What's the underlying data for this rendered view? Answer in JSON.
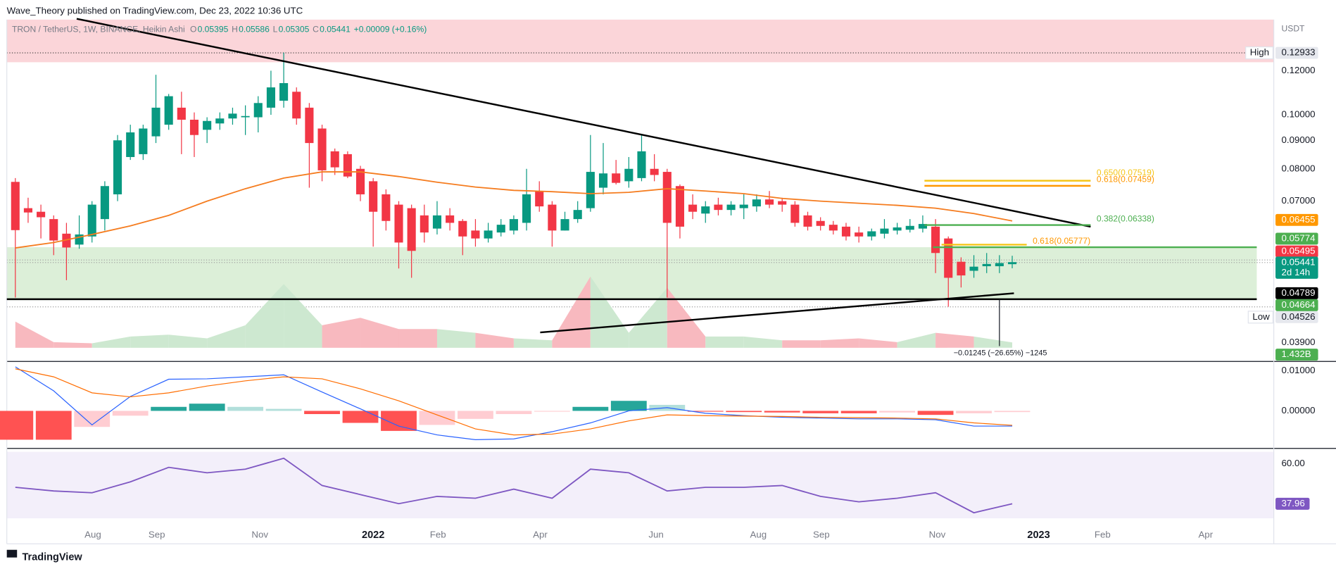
{
  "header": {
    "publisher": "Wave_Theory published on TradingView.com, Dec 23, 2022 10:36 UTC"
  },
  "legend": {
    "symbol": "TRON / TetherUS, 1W, BINANCE, Heikin Ashi",
    "fields": [
      {
        "key": "O",
        "value": "0.05395"
      },
      {
        "key": "H",
        "value": "0.05586"
      },
      {
        "key": "L",
        "value": "0.05305"
      },
      {
        "key": "C",
        "value": "0.05441"
      }
    ],
    "change": "+0.00009 (+0.16%)"
  },
  "price_axis": {
    "unit": "USDT",
    "log": true,
    "ylim": [
      0.0361,
      0.1482
    ],
    "ticks": [
      {
        "value": 0.12,
        "label": "0.12000"
      },
      {
        "value": 0.1,
        "label": "0.10000"
      },
      {
        "value": 0.09,
        "label": "0.09000"
      },
      {
        "value": 0.08,
        "label": "0.08000"
      },
      {
        "value": 0.07,
        "label": "0.07000"
      },
      {
        "value": 0.039,
        "label": "0.03900"
      }
    ],
    "high_label": "High",
    "low_label": "Low",
    "badges": [
      "0.12933",
      "0.06455",
      "0.05774",
      "0.05495",
      "0.05441",
      "2d 14h",
      "0.04789",
      "0.04664",
      "0.04526",
      "1.432B"
    ]
  },
  "candles": [
    [
      0.0758,
      0.077,
      0.047,
      0.0621
    ],
    [
      0.068,
      0.071,
      0.064,
      0.0668
    ],
    [
      0.067,
      0.069,
      0.06,
      0.0655
    ],
    [
      0.065,
      0.066,
      0.056,
      0.0595
    ],
    [
      0.0612,
      0.064,
      0.0505,
      0.0578
    ],
    [
      0.0585,
      0.066,
      0.0575,
      0.061
    ],
    [
      0.0605,
      0.07,
      0.059,
      0.069
    ],
    [
      0.065,
      0.076,
      0.062,
      0.0745
    ],
    [
      0.072,
      0.092,
      0.07,
      0.09
    ],
    [
      0.084,
      0.096,
      0.083,
      0.093
    ],
    [
      0.085,
      0.096,
      0.083,
      0.0945
    ],
    [
      0.0915,
      0.118,
      0.089,
      0.103
    ],
    [
      0.096,
      0.109,
      0.094,
      0.108
    ],
    [
      0.103,
      0.11,
      0.085,
      0.098
    ],
    [
      0.098,
      0.101,
      0.084,
      0.092
    ],
    [
      0.094,
      0.099,
      0.089,
      0.0975
    ],
    [
      0.0965,
      0.101,
      0.094,
      0.0985
    ],
    [
      0.0985,
      0.103,
      0.096,
      0.1005
    ],
    [
      0.099,
      0.104,
      0.092,
      0.0995
    ],
    [
      0.099,
      0.108,
      0.093,
      0.105
    ],
    [
      0.103,
      0.12,
      0.1,
      0.112
    ],
    [
      0.106,
      0.12933,
      0.103,
      0.114
    ],
    [
      0.11,
      0.112,
      0.096,
      0.0985
    ],
    [
      0.103,
      0.105,
      0.074,
      0.089
    ],
    [
      0.0945,
      0.096,
      0.076,
      0.0795
    ],
    [
      0.086,
      0.087,
      0.078,
      0.0805
    ],
    [
      0.085,
      0.086,
      0.077,
      0.0775
    ],
    [
      0.08,
      0.081,
      0.07,
      0.072
    ],
    [
      0.076,
      0.077,
      0.058,
      0.067
    ],
    [
      0.072,
      0.0735,
      0.062,
      0.0645
    ],
    [
      0.069,
      0.07,
      0.053,
      0.059
    ],
    [
      0.068,
      0.069,
      0.051,
      0.057
    ],
    [
      0.066,
      0.069,
      0.059,
      0.0615
    ],
    [
      0.0625,
      0.07,
      0.061,
      0.066
    ],
    [
      0.066,
      0.068,
      0.062,
      0.064
    ],
    [
      0.0645,
      0.065,
      0.056,
      0.0605
    ],
    [
      0.062,
      0.065,
      0.058,
      0.06
    ],
    [
      0.06,
      0.064,
      0.059,
      0.062
    ],
    [
      0.0615,
      0.065,
      0.0605,
      0.0635
    ],
    [
      0.062,
      0.066,
      0.061,
      0.065
    ],
    [
      0.064,
      0.08,
      0.062,
      0.072
    ],
    [
      0.073,
      0.076,
      0.067,
      0.0685
    ],
    [
      0.069,
      0.07,
      0.058,
      0.062
    ],
    [
      0.062,
      0.067,
      0.062,
      0.065
    ],
    [
      0.065,
      0.07,
      0.064,
      0.0675
    ],
    [
      0.068,
      0.092,
      0.067,
      0.079
    ],
    [
      0.074,
      0.089,
      0.072,
      0.0785
    ],
    [
      0.0785,
      0.083,
      0.075,
      0.0755
    ],
    [
      0.076,
      0.084,
      0.074,
      0.08
    ],
    [
      0.077,
      0.092,
      0.076,
      0.086
    ],
    [
      0.08,
      0.085,
      0.076,
      0.078
    ],
    [
      0.079,
      0.08,
      0.047,
      0.064
    ],
    [
      0.0745,
      0.075,
      0.06,
      0.063
    ],
    [
      0.069,
      0.072,
      0.065,
      0.067
    ],
    [
      0.0665,
      0.07,
      0.064,
      0.0685
    ],
    [
      0.069,
      0.071,
      0.066,
      0.0675
    ],
    [
      0.0675,
      0.07,
      0.066,
      0.069
    ],
    [
      0.068,
      0.072,
      0.065,
      0.069
    ],
    [
      0.0685,
      0.072,
      0.067,
      0.0705
    ],
    [
      0.0705,
      0.073,
      0.068,
      0.069
    ],
    [
      0.07,
      0.071,
      0.067,
      0.069
    ],
    [
      0.069,
      0.07,
      0.063,
      0.064
    ],
    [
      0.066,
      0.067,
      0.062,
      0.063
    ],
    [
      0.0645,
      0.0655,
      0.062,
      0.0632
    ],
    [
      0.0635,
      0.0645,
      0.061,
      0.062
    ],
    [
      0.063,
      0.064,
      0.0595,
      0.0605
    ],
    [
      0.0615,
      0.063,
      0.059,
      0.0605
    ],
    [
      0.0605,
      0.0625,
      0.0595,
      0.0618
    ],
    [
      0.0612,
      0.065,
      0.06,
      0.0625
    ],
    [
      0.062,
      0.064,
      0.061,
      0.0628
    ],
    [
      0.0622,
      0.065,
      0.0615,
      0.0632
    ],
    [
      0.0625,
      0.066,
      0.0615,
      0.0637
    ],
    [
      0.063,
      0.065,
      0.052,
      0.0565
    ],
    [
      0.06,
      0.0605,
      0.04526,
      0.051
    ],
    [
      0.0545,
      0.0555,
      0.049,
      0.0515
    ],
    [
      0.0525,
      0.056,
      0.051,
      0.0534
    ],
    [
      0.0535,
      0.0565,
      0.052,
      0.054
    ],
    [
      0.0535,
      0.056,
      0.052,
      0.0542
    ],
    [
      0.05395,
      0.05586,
      0.05305,
      0.05441
    ]
  ],
  "ema": [
    0.0577,
    0.059,
    0.061,
    0.0632,
    0.066,
    0.07,
    0.0737,
    0.077,
    0.079,
    0.079,
    0.0775,
    0.0757,
    0.0742,
    0.0732,
    0.0728,
    0.0722,
    0.0726,
    0.0737,
    0.073,
    0.0722,
    0.0708,
    0.07,
    0.0694,
    0.0688,
    0.068,
    0.0665,
    0.0645
  ],
  "volume": {
    "ylim": [
      0,
      87.5
    ],
    "values": [
      7,
      1.5,
      1.2,
      3,
      3.5,
      2.5,
      6,
      17,
      6,
      8,
      5,
      5,
      4,
      2.5,
      2,
      19,
      4,
      16,
      3,
      3,
      2,
      2,
      2.5,
      1.5,
      4,
      3,
      1.432
    ]
  },
  "fib_labels": [
    "0.650(0.07519)",
    "0.618(0.07459)",
    "0.382(0.06338)",
    "0.618(0.05777)"
  ],
  "measure": "−0.01245 (−26.65%) −1245",
  "macd": {
    "ylim": [
      -0.00915,
      0.01213
    ],
    "ticks": [
      {
        "value": 0.01,
        "label": "0.01000"
      },
      {
        "value": 0,
        "label": "0.00000"
      }
    ],
    "macd": [
      0.011,
      0.005,
      -0.0035,
      0.0036,
      0.0079,
      0.008,
      0.0085,
      0.009,
      0.0047,
      0.0005,
      -0.0038,
      -0.006,
      -0.0072,
      -0.007,
      -0.0052,
      -0.003,
      0,
      0.0008,
      -0.0006,
      -0.0012,
      -0.0016,
      -0.0018,
      -0.002,
      -0.002,
      -0.0022,
      -0.0038,
      -0.0038
    ],
    "signal": [
      0.0105,
      0.0085,
      0.0045,
      0.0035,
      0.0045,
      0.0062,
      0.0075,
      0.0085,
      0.008,
      0.0055,
      0.0025,
      -0.001,
      -0.0045,
      -0.006,
      -0.0058,
      -0.0045,
      -0.0025,
      -0.001,
      -0.0012,
      -0.0013,
      -0.0014,
      -0.0016,
      -0.0017,
      -0.0018,
      -0.002,
      -0.003,
      -0.0036
    ],
    "histogram": [
      -0.0072,
      -0.0072,
      -0.004,
      -0.0012,
      0.001,
      0.0018,
      0.001,
      0.0005,
      -0.0008,
      -0.003,
      -0.005,
      -0.0035,
      -0.002,
      -0.0008,
      -0.0002,
      0.001,
      0.0025,
      0.0015,
      -0.0002,
      -0.0003,
      -0.0004,
      -0.0006,
      -0.0006,
      -0.0004,
      -0.001,
      -0.0006,
      -0.0003
    ]
  },
  "rsi": {
    "ylim": [
      15.87,
      66.57
    ],
    "ticks": [
      {
        "value": 60,
        "label": "60.00"
      }
    ],
    "badge": "37.96",
    "values": [
      47,
      45,
      44,
      50,
      58,
      55,
      57,
      63,
      48,
      43,
      38,
      42,
      41,
      46,
      41,
      57,
      55,
      45,
      47,
      47,
      48,
      42,
      39,
      41,
      44,
      33,
      37.96
    ]
  },
  "time_axis": [
    "Aug",
    "Sep",
    "Nov",
    "2022",
    "Feb",
    "Apr",
    "Jun",
    "Aug",
    "Sep",
    "Nov",
    "2023",
    "Feb",
    "Apr"
  ],
  "footer": {
    "brand": "TradingView"
  }
}
